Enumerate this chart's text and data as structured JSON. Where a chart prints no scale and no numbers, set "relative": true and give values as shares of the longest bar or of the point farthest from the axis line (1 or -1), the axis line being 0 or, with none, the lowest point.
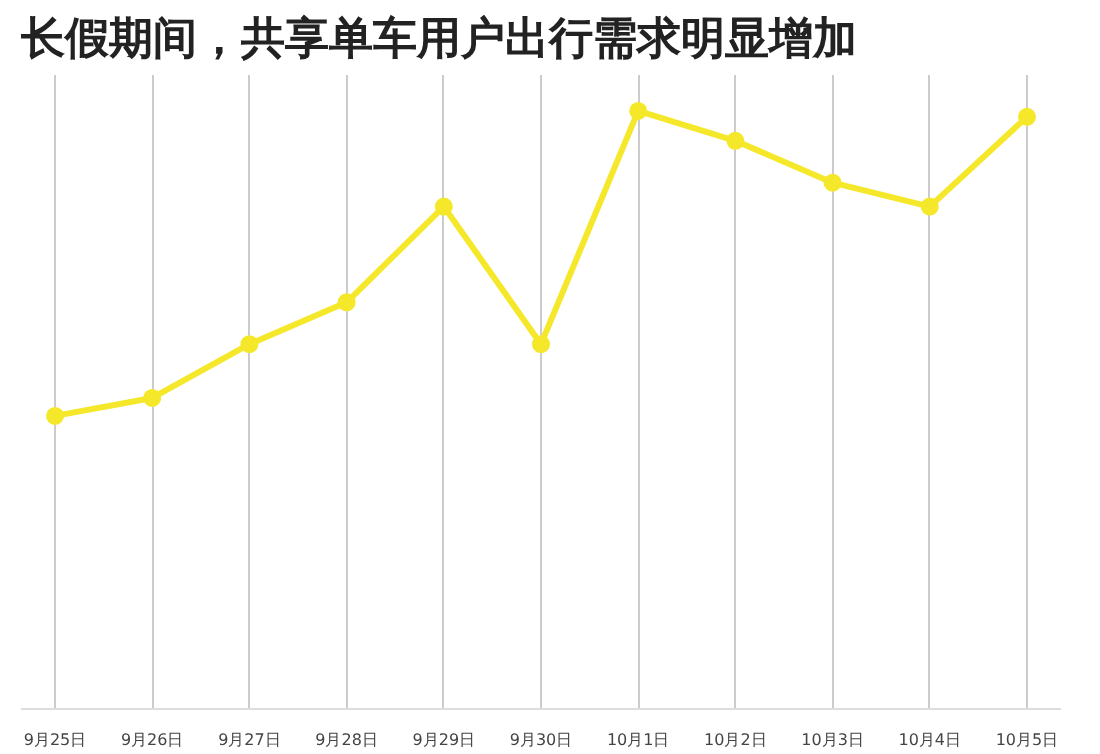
{
  "chart_data": {
    "type": "line",
    "title": "长假期间，共享单车用户出行需求明显增加",
    "relative": true,
    "categories": [
      "9月25日",
      "9月26日",
      "9月27日",
      "9月28日",
      "9月29日",
      "9月30日",
      "10月1日",
      "10月2日",
      "10月3日",
      "10月4日",
      "10月5日"
    ],
    "series": [
      {
        "color": "#f5e82a",
        "values": [
          0.49,
          0.52,
          0.61,
          0.68,
          0.84,
          0.61,
          1.0,
          0.95,
          0.88,
          0.84,
          0.99
        ]
      }
    ],
    "marker": "circle",
    "grid": "x"
  }
}
